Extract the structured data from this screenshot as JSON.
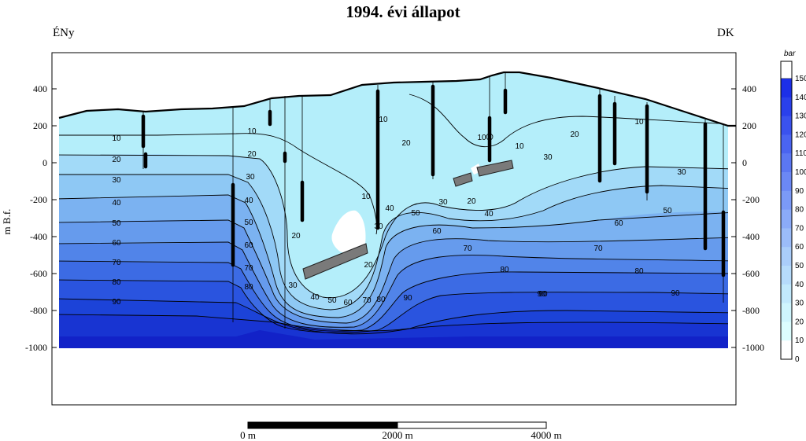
{
  "title": "1994. évi állapot",
  "directions": {
    "left": "ÉNy",
    "right": "DK"
  },
  "y_axis": {
    "label": "m B.f.",
    "ticks": [
      "400",
      "200",
      "0",
      "-200",
      "-400",
      "-600",
      "-800",
      "-1000"
    ]
  },
  "y_axis_right_ticks": [
    "400",
    "200",
    "0",
    "-200",
    "-400",
    "-600",
    "-800",
    "-1000"
  ],
  "colorbar": {
    "unit": "bar",
    "ticks": [
      "150",
      "140",
      "130",
      "120",
      "110",
      "100",
      "90",
      "80",
      "70",
      "60",
      "50",
      "40",
      "30",
      "20",
      "10",
      "0"
    ],
    "colors": [
      "#1c2fe8",
      "#2a40eb",
      "#3a52ee",
      "#4a64f1",
      "#5b77f3",
      "#6b88f5",
      "#7b9af7",
      "#8babf8",
      "#9bbcf9",
      "#aacdfa",
      "#b6dbfb",
      "#c2e9fc",
      "#cff5fd",
      "#dcfdfe",
      "#ffffff"
    ]
  },
  "contour_labels": [
    "10",
    "20",
    "30",
    "40",
    "50",
    "60",
    "70",
    "80",
    "90"
  ],
  "scalebar": {
    "labels": [
      "0 m",
      "2000 m",
      "4000 m"
    ]
  }
}
